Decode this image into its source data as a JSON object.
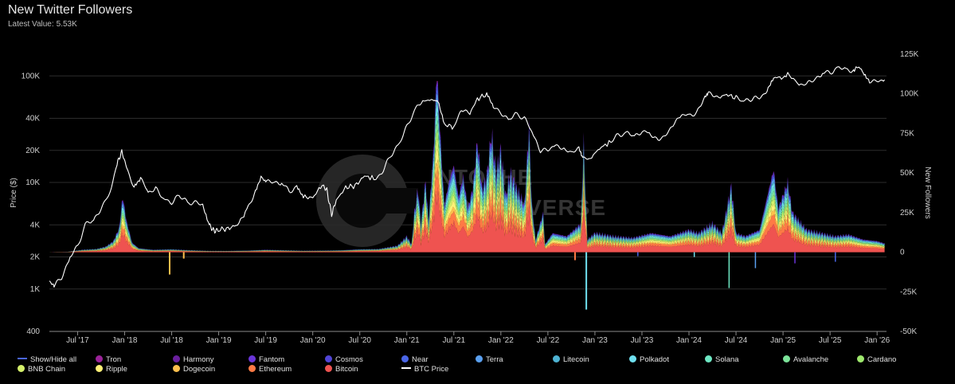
{
  "header": {
    "title": "New Twitter Followers",
    "latest_label": "Latest Value:",
    "latest_value": "5.53K"
  },
  "watermark": {
    "line1": "INTOTHE",
    "line2": "CRYPTOVERSE"
  },
  "chart_data": {
    "type": "area",
    "title": "New Twitter Followers",
    "left_axis": {
      "label": "Price ($)",
      "scale": "log",
      "range": [
        400,
        160000
      ],
      "ticks": [
        {
          "value": 400,
          "label": "400"
        },
        {
          "value": 1000,
          "label": "1K"
        },
        {
          "value": 2000,
          "label": "2K"
        },
        {
          "value": 4000,
          "label": "4K"
        },
        {
          "value": 10000,
          "label": "10K"
        },
        {
          "value": 20000,
          "label": "20K"
        },
        {
          "value": 40000,
          "label": "40K"
        },
        {
          "value": 100000,
          "label": "100K"
        }
      ]
    },
    "right_axis": {
      "label": "New Followers",
      "scale": "linear",
      "range": [
        -50000,
        125000
      ],
      "ticks": [
        {
          "value": -50000,
          "label": "-50K"
        },
        {
          "value": -25000,
          "label": "-25K"
        },
        {
          "value": 0,
          "label": "0"
        },
        {
          "value": 25000,
          "label": "25K"
        },
        {
          "value": 50000,
          "label": "50K"
        },
        {
          "value": 75000,
          "label": "75K"
        },
        {
          "value": 100000,
          "label": "100K"
        },
        {
          "value": 125000,
          "label": "125K"
        }
      ]
    },
    "x_axis": {
      "range": [
        2017.2,
        2026.1
      ],
      "ticks": [
        {
          "value": 2017.5,
          "label": "Jul '17"
        },
        {
          "value": 2018.0,
          "label": "Jan '18"
        },
        {
          "value": 2018.5,
          "label": "Jul '18"
        },
        {
          "value": 2019.0,
          "label": "Jan '19"
        },
        {
          "value": 2019.5,
          "label": "Jul '19"
        },
        {
          "value": 2020.0,
          "label": "Jan '20"
        },
        {
          "value": 2020.5,
          "label": "Jul '20"
        },
        {
          "value": 2021.0,
          "label": "Jan '21"
        },
        {
          "value": 2021.5,
          "label": "Jul '21"
        },
        {
          "value": 2022.0,
          "label": "Jan '22"
        },
        {
          "value": 2022.5,
          "label": "Jul '22"
        },
        {
          "value": 2023.0,
          "label": "Jan '23"
        },
        {
          "value": 2023.5,
          "label": "Jul '23"
        },
        {
          "value": 2024.0,
          "label": "Jan '24"
        },
        {
          "value": 2024.5,
          "label": "Jul '24"
        },
        {
          "value": 2025.0,
          "label": "Jan '25"
        },
        {
          "value": 2025.5,
          "label": "Jul '25"
        },
        {
          "value": 2026.0,
          "label": "Jan '26"
        }
      ]
    },
    "btc_price": {
      "name": "BTC Price",
      "axis": "left",
      "color": "#ffffff",
      "points": [
        [
          2017.2,
          1200
        ],
        [
          2017.25,
          1050
        ],
        [
          2017.33,
          1300
        ],
        [
          2017.42,
          2000
        ],
        [
          2017.5,
          2500
        ],
        [
          2017.58,
          4000
        ],
        [
          2017.67,
          4300
        ],
        [
          2017.75,
          5800
        ],
        [
          2017.83,
          7500
        ],
        [
          2017.92,
          15000
        ],
        [
          2017.97,
          19500
        ],
        [
          2018.02,
          14000
        ],
        [
          2018.1,
          9000
        ],
        [
          2018.17,
          11000
        ],
        [
          2018.25,
          8000
        ],
        [
          2018.33,
          9000
        ],
        [
          2018.42,
          7000
        ],
        [
          2018.5,
          6500
        ],
        [
          2018.58,
          7500
        ],
        [
          2018.67,
          6500
        ],
        [
          2018.75,
          6400
        ],
        [
          2018.83,
          6300
        ],
        [
          2018.9,
          4000
        ],
        [
          2018.95,
          3500
        ],
        [
          2019.0,
          3600
        ],
        [
          2019.1,
          3700
        ],
        [
          2019.2,
          4000
        ],
        [
          2019.3,
          5500
        ],
        [
          2019.38,
          8000
        ],
        [
          2019.45,
          11500
        ],
        [
          2019.5,
          10000
        ],
        [
          2019.58,
          10500
        ],
        [
          2019.67,
          9800
        ],
        [
          2019.75,
          8300
        ],
        [
          2019.83,
          9000
        ],
        [
          2019.9,
          7300
        ],
        [
          2020.0,
          7200
        ],
        [
          2020.1,
          9500
        ],
        [
          2020.15,
          8500
        ],
        [
          2020.2,
          5000
        ],
        [
          2020.25,
          6800
        ],
        [
          2020.35,
          9000
        ],
        [
          2020.45,
          9300
        ],
        [
          2020.55,
          11500
        ],
        [
          2020.67,
          10800
        ],
        [
          2020.75,
          13000
        ],
        [
          2020.83,
          18000
        ],
        [
          2020.92,
          23500
        ],
        [
          2021.0,
          33000
        ],
        [
          2021.08,
          47000
        ],
        [
          2021.17,
          58000
        ],
        [
          2021.28,
          60000
        ],
        [
          2021.33,
          57000
        ],
        [
          2021.4,
          35000
        ],
        [
          2021.5,
          33000
        ],
        [
          2021.58,
          47000
        ],
        [
          2021.67,
          44000
        ],
        [
          2021.75,
          61000
        ],
        [
          2021.85,
          67000
        ],
        [
          2021.92,
          50000
        ],
        [
          2022.0,
          46000
        ],
        [
          2022.08,
          38000
        ],
        [
          2022.17,
          44000
        ],
        [
          2022.25,
          40000
        ],
        [
          2022.33,
          30000
        ],
        [
          2022.42,
          20000
        ],
        [
          2022.5,
          20000
        ],
        [
          2022.58,
          23000
        ],
        [
          2022.67,
          20000
        ],
        [
          2022.75,
          19500
        ],
        [
          2022.83,
          20500
        ],
        [
          2022.87,
          16500
        ],
        [
          2022.95,
          16800
        ],
        [
          2023.05,
          21000
        ],
        [
          2023.17,
          24000
        ],
        [
          2023.25,
          28000
        ],
        [
          2023.33,
          29000
        ],
        [
          2023.42,
          26500
        ],
        [
          2023.5,
          30500
        ],
        [
          2023.58,
          29000
        ],
        [
          2023.67,
          26000
        ],
        [
          2023.75,
          27000
        ],
        [
          2023.83,
          34500
        ],
        [
          2023.92,
          42000
        ],
        [
          2024.0,
          43000
        ],
        [
          2024.08,
          45000
        ],
        [
          2024.17,
          65000
        ],
        [
          2024.21,
          72000
        ],
        [
          2024.3,
          62000
        ],
        [
          2024.4,
          67000
        ],
        [
          2024.5,
          62000
        ],
        [
          2024.58,
          58000
        ],
        [
          2024.67,
          60000
        ],
        [
          2024.75,
          63000
        ],
        [
          2024.83,
          72000
        ],
        [
          2024.9,
          97000
        ],
        [
          2025.0,
          96000
        ],
        [
          2025.05,
          104000
        ],
        [
          2025.17,
          84000
        ],
        [
          2025.25,
          83000
        ],
        [
          2025.33,
          95000
        ],
        [
          2025.42,
          106000
        ],
        [
          2025.5,
          108000
        ],
        [
          2025.58,
          118000
        ],
        [
          2025.67,
          113000
        ],
        [
          2025.75,
          114000
        ],
        [
          2025.8,
          122000
        ],
        [
          2025.85,
          110000
        ],
        [
          2025.92,
          91000
        ],
        [
          2026.0,
          88000
        ],
        [
          2026.08,
          92000
        ]
      ]
    },
    "series": [
      {
        "name": "Bitcoin",
        "color": "#ef5350"
      },
      {
        "name": "Ethereum",
        "color": "#ff7a45"
      },
      {
        "name": "Dogecoin",
        "color": "#ffc04d"
      },
      {
        "name": "Ripple",
        "color": "#fff176"
      },
      {
        "name": "BNB Chain",
        "color": "#d4f06a"
      },
      {
        "name": "Cardano",
        "color": "#9ee86d"
      },
      {
        "name": "Avalanche",
        "color": "#7ce39a"
      },
      {
        "name": "Solana",
        "color": "#6ee7c3"
      },
      {
        "name": "Polkadot",
        "color": "#6fe0ef"
      },
      {
        "name": "Litecoin",
        "color": "#4eb3d3"
      },
      {
        "name": "Terra",
        "color": "#5aa0f0"
      },
      {
        "name": "Near",
        "color": "#4a66e8"
      },
      {
        "name": "Cosmos",
        "color": "#5145d6"
      },
      {
        "name": "Fantom",
        "color": "#6a35d8"
      },
      {
        "name": "Harmony",
        "color": "#6a1f9e"
      },
      {
        "name": "Tron",
        "color": "#9b2399"
      }
    ],
    "stacked_total": {
      "axis": "right",
      "points": [
        [
          2017.2,
          0
        ],
        [
          2017.4,
          300
        ],
        [
          2017.55,
          1500
        ],
        [
          2017.7,
          2000
        ],
        [
          2017.8,
          3500
        ],
        [
          2017.88,
          7000
        ],
        [
          2017.94,
          15000
        ],
        [
          2017.98,
          35000
        ],
        [
          2018.02,
          20000
        ],
        [
          2018.08,
          6000
        ],
        [
          2018.15,
          2500
        ],
        [
          2018.3,
          1500
        ],
        [
          2018.5,
          1800
        ],
        [
          2018.7,
          1200
        ],
        [
          2018.9,
          800
        ],
        [
          2019.1,
          800
        ],
        [
          2019.3,
          1000
        ],
        [
          2019.5,
          1500
        ],
        [
          2019.7,
          1200
        ],
        [
          2019.9,
          900
        ],
        [
          2020.1,
          1000
        ],
        [
          2020.3,
          1200
        ],
        [
          2020.5,
          1800
        ],
        [
          2020.7,
          2000
        ],
        [
          2020.9,
          4000
        ],
        [
          2021.0,
          10000
        ],
        [
          2021.05,
          5000
        ],
        [
          2021.08,
          25000
        ],
        [
          2021.12,
          40000
        ],
        [
          2021.15,
          18000
        ],
        [
          2021.2,
          45000
        ],
        [
          2021.23,
          20000
        ],
        [
          2021.28,
          60000
        ],
        [
          2021.32,
          115000
        ],
        [
          2021.36,
          70000
        ],
        [
          2021.4,
          30000
        ],
        [
          2021.45,
          45000
        ],
        [
          2021.5,
          55000
        ],
        [
          2021.55,
          35000
        ],
        [
          2021.6,
          48000
        ],
        [
          2021.65,
          28000
        ],
        [
          2021.7,
          40000
        ],
        [
          2021.75,
          70000
        ],
        [
          2021.8,
          40000
        ],
        [
          2021.85,
          48000
        ],
        [
          2021.9,
          75000
        ],
        [
          2021.95,
          50000
        ],
        [
          2022.0,
          65000
        ],
        [
          2022.05,
          35000
        ],
        [
          2022.1,
          50000
        ],
        [
          2022.17,
          40000
        ],
        [
          2022.25,
          30000
        ],
        [
          2022.3,
          80000
        ],
        [
          2022.33,
          30000
        ],
        [
          2022.37,
          8000
        ],
        [
          2022.45,
          25000
        ],
        [
          2022.47,
          5000
        ],
        [
          2022.55,
          12000
        ],
        [
          2022.7,
          10000
        ],
        [
          2022.85,
          18000
        ],
        [
          2022.88,
          70000
        ],
        [
          2022.92,
          8000
        ],
        [
          2023.0,
          12000
        ],
        [
          2023.2,
          10000
        ],
        [
          2023.4,
          9000
        ],
        [
          2023.6,
          12000
        ],
        [
          2023.8,
          10000
        ],
        [
          2024.0,
          14000
        ],
        [
          2024.1,
          12000
        ],
        [
          2024.25,
          18000
        ],
        [
          2024.35,
          12000
        ],
        [
          2024.45,
          42000
        ],
        [
          2024.5,
          12000
        ],
        [
          2024.6,
          10000
        ],
        [
          2024.75,
          14000
        ],
        [
          2024.85,
          40000
        ],
        [
          2024.9,
          52000
        ],
        [
          2024.95,
          28000
        ],
        [
          2025.05,
          44000
        ],
        [
          2025.1,
          25000
        ],
        [
          2025.25,
          14000
        ],
        [
          2025.4,
          12000
        ],
        [
          2025.55,
          10000
        ],
        [
          2025.7,
          11000
        ],
        [
          2025.85,
          8000
        ],
        [
          2026.0,
          7000
        ],
        [
          2026.08,
          5530
        ]
      ]
    }
  },
  "legend": {
    "rows": [
      [
        {
          "label": "Show/Hide all",
          "color": "#4a66e8",
          "kind": "line"
        },
        {
          "label": "Tron",
          "color": "#9b2399",
          "kind": "dot"
        },
        {
          "label": "Harmony",
          "color": "#6a1f9e",
          "kind": "dot"
        },
        {
          "label": "Fantom",
          "color": "#6a35d8",
          "kind": "dot"
        },
        {
          "label": "Cosmos",
          "color": "#5145d6",
          "kind": "dot"
        },
        {
          "label": "Near",
          "color": "#4a66e8",
          "kind": "dot"
        },
        {
          "label": "Terra",
          "color": "#5aa0f0",
          "kind": "dot"
        },
        {
          "label": "Litecoin",
          "color": "#4eb3d3",
          "kind": "dot"
        },
        {
          "label": "Polkadot",
          "color": "#6fe0ef",
          "kind": "dot"
        },
        {
          "label": "Solana",
          "color": "#6ee7c3",
          "kind": "dot"
        },
        {
          "label": "Avalanche",
          "color": "#7ce39a",
          "kind": "dot"
        },
        {
          "label": "Cardano",
          "color": "#9ee86d",
          "kind": "dot"
        }
      ],
      [
        {
          "label": "BNB Chain",
          "color": "#d4f06a",
          "kind": "dot"
        },
        {
          "label": "Ripple",
          "color": "#fff176",
          "kind": "dot"
        },
        {
          "label": "Dogecoin",
          "color": "#ffc04d",
          "kind": "dot"
        },
        {
          "label": "Ethereum",
          "color": "#ff7a45",
          "kind": "dot"
        },
        {
          "label": "Bitcoin",
          "color": "#ef5350",
          "kind": "dot"
        },
        {
          "label": "BTC Price",
          "color": "#ffffff",
          "kind": "line"
        }
      ]
    ]
  }
}
